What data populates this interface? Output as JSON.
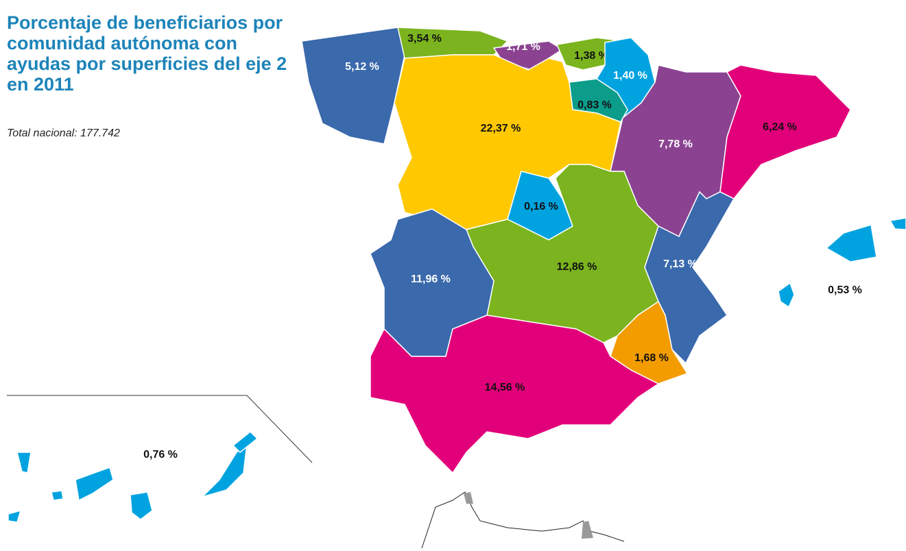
{
  "header": {
    "title": "Porcentaje de beneficiarios por comunidad autónoma con ayudas por superficies del eje 2 en 2011",
    "subtitle": "Total nacional: 177.742"
  },
  "regions": [
    {
      "label": "5,12 %",
      "color": "#3a69ac"
    },
    {
      "label": "3,54 %",
      "color": "#7bb41e"
    },
    {
      "label": "1,71 %",
      "color": "#8b4391"
    },
    {
      "label": "1,38 %",
      "color": "#7bb41e"
    },
    {
      "label": "1,40 %",
      "color": "#00a3e0"
    },
    {
      "label": "0,83 %",
      "color": "#0b9c8a"
    },
    {
      "label": "22,37 %",
      "color": "#ffc800"
    },
    {
      "label": "7,78 %",
      "color": "#8b4391"
    },
    {
      "label": "6,24 %",
      "color": "#e2007a"
    },
    {
      "label": "0,16 %",
      "color": "#00a3e0"
    },
    {
      "label": "12,86 %",
      "color": "#7bb41e"
    },
    {
      "label": "11,96 %",
      "color": "#3a69ac"
    },
    {
      "label": "7,13 %",
      "color": "#3a69ac"
    },
    {
      "label": "1,68 %",
      "color": "#f39c00"
    },
    {
      "label": "14,56 %",
      "color": "#e2007a"
    },
    {
      "label": "0,53 %",
      "color": "#00a3e0"
    },
    {
      "label": "0,76 %",
      "color": "#00a3e0"
    }
  ]
}
